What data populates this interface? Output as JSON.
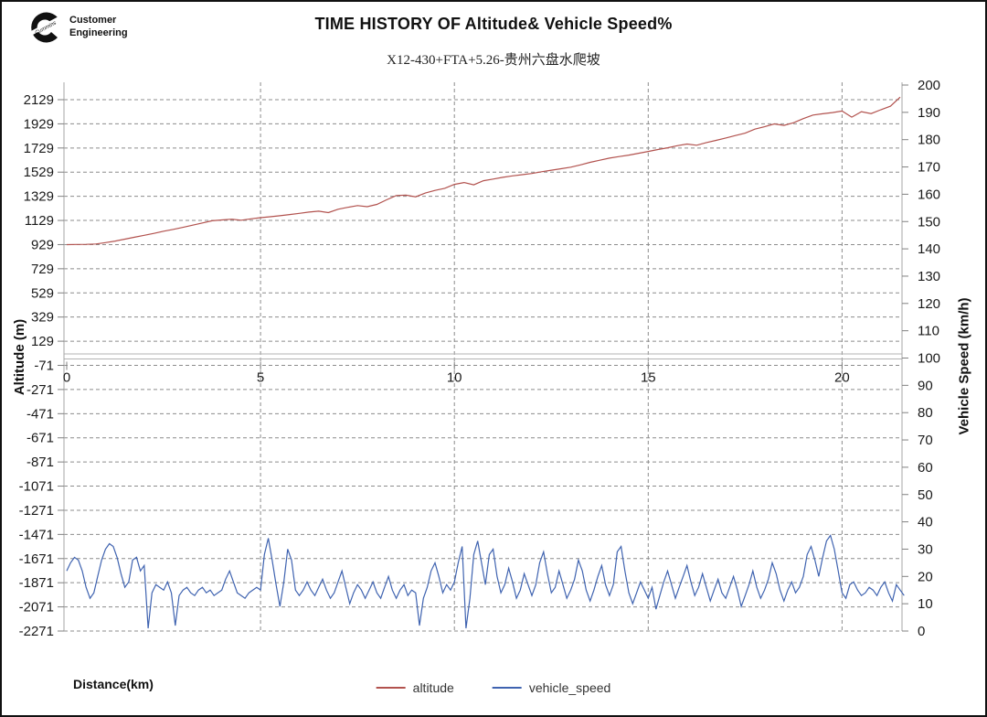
{
  "header": {
    "logo_line1": "Customer",
    "logo_line2": "Engineering",
    "brand_letter": "C"
  },
  "title": "TIME HISTORY OF Altitude& Vehicle Speed%",
  "subtitle": "X12-430+FTA+5.26-贵州六盘水爬坡",
  "chart_data": {
    "type": "line",
    "title": "TIME HISTORY OF Altitude& Vehicle Speed%",
    "subtitle": "X12-430+FTA+5.26-贵州六盘水爬坡",
    "grid": {
      "horizontal_dashed": true,
      "vertical_dashed_at": [
        5,
        10,
        15,
        20
      ],
      "solid_line_right_value": 100
    },
    "x_axis": {
      "label": "Distance(km)",
      "ticks": [
        0,
        5,
        10,
        15,
        20
      ],
      "range": [
        0,
        21.6
      ]
    },
    "y_left": {
      "label": "Altitude (m)",
      "ticks": [
        2129,
        1929,
        1729,
        1529,
        1329,
        1129,
        929,
        729,
        529,
        329,
        129,
        -71,
        -271,
        -471,
        -671,
        -871,
        -1071,
        -1271,
        -1471,
        -1671,
        -1871,
        -2071,
        -2271
      ],
      "range": [
        -2271,
        2129
      ]
    },
    "y_right": {
      "label": "Vehicle Speed (km/h)",
      "ticks": [
        200,
        190,
        180,
        170,
        160,
        150,
        140,
        130,
        120,
        110,
        100,
        90,
        80,
        70,
        60,
        50,
        40,
        30,
        20,
        10,
        0
      ],
      "range": [
        0,
        200
      ]
    },
    "legend": [
      {
        "name": "altitude",
        "color": "#b2524e"
      },
      {
        "name": "vehicle_speed",
        "color": "#3f63b0"
      }
    ],
    "series": [
      {
        "name": "altitude",
        "axis": "left",
        "color": "#b2524e",
        "x_start": 0,
        "x_step": 0.25,
        "values": [
          929,
          930,
          931,
          934,
          945,
          958,
          974,
          990,
          1006,
          1022,
          1040,
          1055,
          1072,
          1090,
          1108,
          1126,
          1133,
          1139,
          1131,
          1142,
          1152,
          1160,
          1168,
          1178,
          1188,
          1198,
          1206,
          1194,
          1222,
          1238,
          1252,
          1243,
          1262,
          1300,
          1335,
          1338,
          1325,
          1356,
          1378,
          1395,
          1428,
          1443,
          1424,
          1458,
          1472,
          1486,
          1498,
          1508,
          1518,
          1532,
          1545,
          1557,
          1570,
          1589,
          1610,
          1628,
          1645,
          1658,
          1670,
          1685,
          1700,
          1716,
          1731,
          1748,
          1762,
          1752,
          1774,
          1792,
          1812,
          1832,
          1852,
          1885,
          1905,
          1928,
          1916,
          1938,
          1972,
          2002,
          2012,
          2022,
          2035,
          1984,
          2030,
          2014,
          2046,
          2075,
          2150
        ]
      },
      {
        "name": "vehicle_speed",
        "axis": "right",
        "color": "#3f63b0",
        "x_start": 0,
        "x_step": 0.1,
        "values": [
          22,
          25,
          27,
          26,
          22,
          16,
          12,
          14,
          20,
          26,
          30,
          32,
          31,
          27,
          21,
          16,
          18,
          26,
          27,
          22,
          24,
          1,
          14,
          17,
          16,
          15,
          18,
          14,
          2,
          13,
          15,
          16,
          14,
          13,
          15,
          16,
          14,
          15,
          13,
          14,
          15,
          19,
          22,
          18,
          14,
          13,
          12,
          14,
          15,
          16,
          15,
          28,
          34,
          26,
          17,
          9,
          18,
          30,
          26,
          15,
          13,
          15,
          18,
          15,
          13,
          16,
          19,
          15,
          12,
          14,
          18,
          22,
          16,
          10,
          14,
          17,
          15,
          12,
          15,
          18,
          14,
          12,
          16,
          20,
          15,
          12,
          15,
          17,
          13,
          15,
          14,
          2,
          12,
          16,
          22,
          25,
          20,
          14,
          17,
          15,
          18,
          25,
          31,
          1,
          12,
          28,
          33,
          25,
          17,
          28,
          30,
          20,
          14,
          17,
          23,
          18,
          12,
          15,
          21,
          17,
          13,
          17,
          25,
          29,
          21,
          14,
          16,
          22,
          17,
          12,
          15,
          19,
          26,
          22,
          15,
          11,
          15,
          20,
          24,
          17,
          13,
          17,
          29,
          31,
          22,
          14,
          10,
          14,
          18,
          15,
          12,
          16,
          8,
          13,
          18,
          22,
          17,
          12,
          16,
          20,
          24,
          18,
          13,
          16,
          21,
          16,
          11,
          15,
          19,
          14,
          12,
          16,
          20,
          15,
          9,
          13,
          17,
          22,
          16,
          12,
          15,
          19,
          25,
          21,
          15,
          11,
          15,
          18,
          14,
          16,
          20,
          28,
          31,
          26,
          20,
          27,
          33,
          35,
          30,
          22,
          14,
          12,
          17,
          18,
          15,
          13,
          14,
          16,
          15,
          13,
          16,
          18,
          14,
          11,
          17,
          15,
          13
        ]
      }
    ]
  }
}
